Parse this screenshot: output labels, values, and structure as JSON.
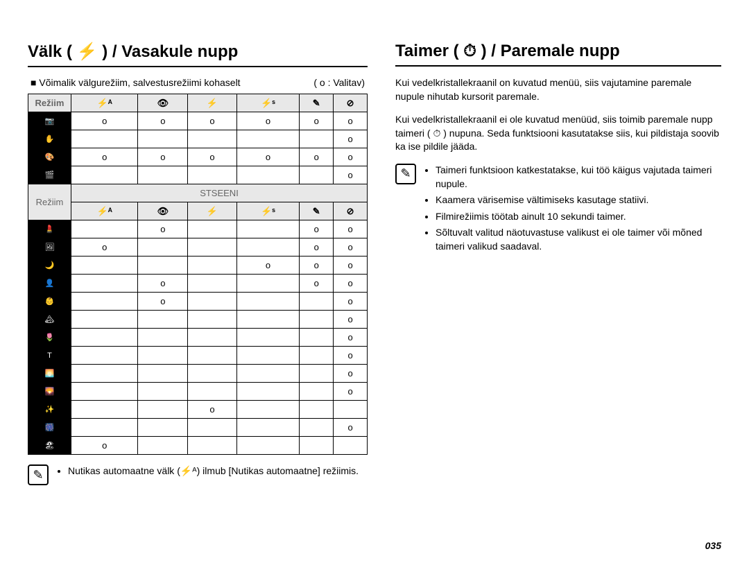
{
  "left": {
    "title": "Välk ( ⚡ ) / Vasakule nupp",
    "intro_left": "Võimalik välgurežiim, salvestusrežiimi kohaselt",
    "intro_right": "( o : Valitav)",
    "mode_label": "Režiim",
    "scene_label": "STSEENI",
    "flash_headers": [
      "⚡ᴬ",
      "👁",
      "⚡",
      "⚡ˢ",
      "✎",
      "⊘"
    ],
    "rows_top": [
      {
        "icon": "📷",
        "cells": [
          "o",
          "o",
          "o",
          "o",
          "o",
          "o"
        ]
      },
      {
        "icon": "✋",
        "cells": [
          "",
          "",
          "",
          "",
          "",
          "o"
        ]
      },
      {
        "icon": "🎨",
        "cells": [
          "o",
          "o",
          "o",
          "o",
          "o",
          "o"
        ]
      },
      {
        "icon": "🎬",
        "cells": [
          "",
          "",
          "",
          "",
          "",
          "o"
        ]
      }
    ],
    "rows_scene": [
      {
        "icon": "💄",
        "cells": [
          "",
          "o",
          "",
          "",
          "o",
          "o"
        ]
      },
      {
        "icon": "🖼",
        "cells": [
          "o",
          "",
          "",
          "",
          "o",
          "o"
        ]
      },
      {
        "icon": "🌙",
        "cells": [
          "",
          "",
          "",
          "o",
          "o",
          "o"
        ]
      },
      {
        "icon": "👤",
        "cells": [
          "",
          "o",
          "",
          "",
          "o",
          "o"
        ]
      },
      {
        "icon": "👶",
        "cells": [
          "",
          "o",
          "",
          "",
          "",
          "o"
        ]
      },
      {
        "icon": "🏔",
        "cells": [
          "",
          "",
          "",
          "",
          "",
          "o"
        ]
      },
      {
        "icon": "🌷",
        "cells": [
          "",
          "",
          "",
          "",
          "",
          "o"
        ]
      },
      {
        "icon": "T",
        "cells": [
          "",
          "",
          "",
          "",
          "",
          "o"
        ]
      },
      {
        "icon": "🌅",
        "cells": [
          "",
          "",
          "",
          "",
          "",
          "o"
        ]
      },
      {
        "icon": "🌄",
        "cells": [
          "",
          "",
          "",
          "",
          "",
          "o"
        ]
      },
      {
        "icon": "✨",
        "cells": [
          "",
          "",
          "o",
          "",
          "",
          ""
        ]
      },
      {
        "icon": "🎆",
        "cells": [
          "",
          "",
          "",
          "",
          "",
          "o"
        ]
      },
      {
        "icon": "🏖",
        "cells": [
          "o",
          "",
          "",
          "",
          "",
          ""
        ]
      }
    ],
    "note": "Nutikas automaatne välk (⚡ᴬ) ilmub [Nutikas automaatne] režiimis."
  },
  "right": {
    "title": "Taimer ( ⏱ ) / Paremale nupp",
    "para1": "Kui vedelkristallekraanil on kuvatud menüü, siis vajutamine paremale nupule nihutab kursorit paremale.",
    "para2": "Kui vedelkristallekraanil ei ole kuvatud menüüd, siis toimib paremale nupp taimeri ( ⏱ ) nupuna. Seda funktsiooni kasutatakse siis, kui pildistaja soovib ka ise pildile jääda.",
    "notes": [
      "Taimeri funktsioon katkestatakse, kui töö käigus vajutada taimeri nupule.",
      "Kaamera värisemise vältimiseks kasutage statiivi.",
      "Filmirežiimis töötab ainult 10 sekundi taimer.",
      "Sõltuvalt valitud näotuvastuse valikust ei ole taimer või mõned taimeri valikud saadaval."
    ]
  },
  "page_number": "035"
}
